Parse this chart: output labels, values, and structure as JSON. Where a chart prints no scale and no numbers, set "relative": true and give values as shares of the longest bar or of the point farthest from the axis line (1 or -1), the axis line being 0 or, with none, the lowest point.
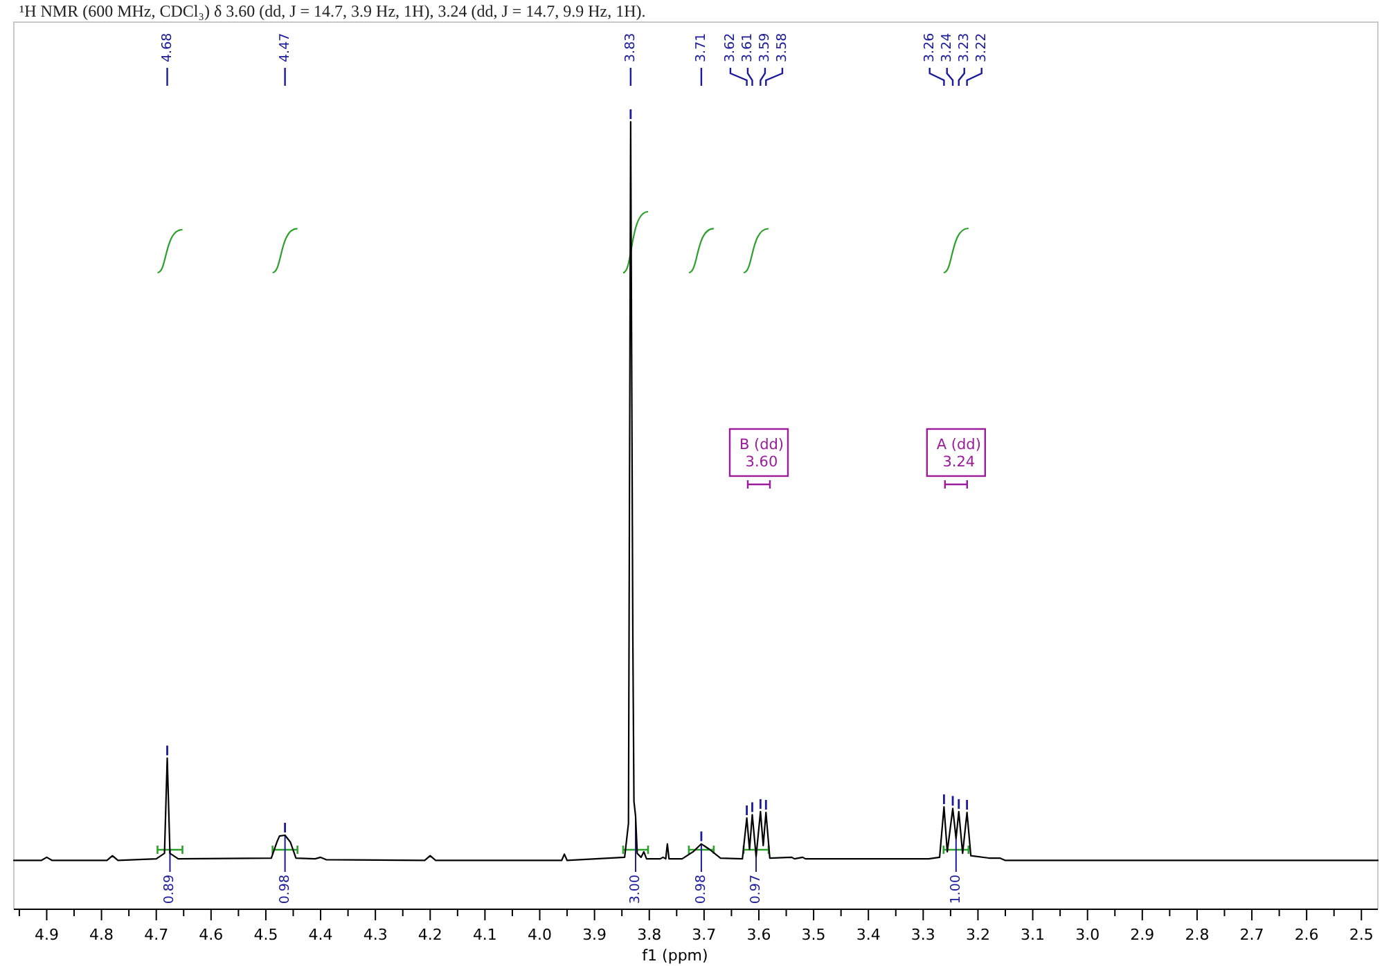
{
  "chart_data": {
    "type": "line",
    "relative": true,
    "title": "¹H NMR (600 MHz, CDCl₃) δ 3.60 (dd, J = 14.7, 3.9 Hz, 1H), 3.24 (dd, J = 14.7, 9.9 Hz, 1H).",
    "xlabel": "f1 (ppm)",
    "xlim": [
      4.96,
      2.47
    ],
    "xticks": [
      4.9,
      4.8,
      4.7,
      4.6,
      4.5,
      4.4,
      4.3,
      4.2,
      4.1,
      {
        "value": 4,
        "label": "4.0"
      },
      3.9,
      3.8,
      3.7,
      3.6,
      3.5,
      3.4,
      3.3,
      3.2,
      3.1,
      {
        "value": 3,
        "label": "3.0"
      },
      2.9,
      2.8,
      2.7,
      2.6,
      2.5
    ],
    "series": [
      {
        "color": "#000000",
        "x": [
          4.96,
          4.91,
          4.9,
          4.89,
          4.79,
          4.78,
          4.77,
          4.7,
          4.685,
          4.68,
          4.675,
          4.66,
          4.49,
          4.48,
          4.475,
          4.465,
          4.455,
          4.445,
          4.41,
          4.4,
          4.39,
          4.21,
          4.2,
          4.19,
          3.96,
          3.955,
          3.95,
          3.845,
          3.838,
          3.834,
          3.83,
          3.828,
          3.825,
          3.822,
          3.815,
          3.81,
          3.805,
          3.78,
          3.775,
          3.77,
          3.767,
          3.764,
          3.74,
          3.72,
          3.705,
          3.69,
          3.67,
          3.63,
          3.622,
          3.617,
          3.612,
          3.605,
          3.597,
          3.592,
          3.587,
          3.58,
          3.54,
          3.535,
          3.52,
          3.515,
          3.48,
          3.29,
          3.27,
          3.262,
          3.256,
          3.246,
          3.24,
          3.235,
          3.228,
          3.22,
          3.213,
          3.18,
          3.16,
          3.15,
          2.47
        ],
        "values": [
          0.062,
          0.062,
          0.066,
          0.062,
          0.062,
          0.068,
          0.062,
          0.064,
          0.071,
          0.192,
          0.071,
          0.064,
          0.065,
          0.085,
          0.093,
          0.094,
          0.085,
          0.065,
          0.064,
          0.066,
          0.063,
          0.062,
          0.068,
          0.062,
          0.062,
          0.07,
          0.062,
          0.066,
          0.109,
          1.0,
          0.343,
          0.137,
          0.118,
          0.071,
          0.066,
          0.073,
          0.064,
          0.064,
          0.066,
          0.064,
          0.083,
          0.064,
          0.064,
          0.073,
          0.083,
          0.076,
          0.065,
          0.064,
          0.116,
          0.076,
          0.12,
          0.067,
          0.124,
          0.081,
          0.123,
          0.065,
          0.066,
          0.064,
          0.066,
          0.064,
          0.064,
          0.064,
          0.066,
          0.13,
          0.073,
          0.128,
          0.09,
          0.124,
          0.071,
          0.123,
          0.068,
          0.065,
          0.065,
          0.062,
          0.062
        ]
      }
    ],
    "annotations": [
      {
        "text": "4.68",
        "x": 4.68
      },
      {
        "text": "4.47",
        "x": 4.465
      },
      {
        "text": "3.83",
        "x": 3.834
      },
      {
        "text": "3.71",
        "x": 3.705
      },
      {
        "text": "3.62",
        "x": 3.622
      },
      {
        "text": "3.61",
        "x": 3.612
      },
      {
        "text": "3.59",
        "x": 3.597
      },
      {
        "text": "3.58",
        "x": 3.587
      },
      {
        "text": "3.26",
        "x": 3.262
      },
      {
        "text": "3.24",
        "x": 3.246
      },
      {
        "text": "3.23",
        "x": 3.235
      },
      {
        "text": "3.22",
        "x": 3.22
      },
      {
        "text": "B (dd)\n3.60",
        "x": 3.6,
        "y": 0.58
      },
      {
        "text": "A (dd)\n3.24",
        "x": 3.24,
        "y": 0.58
      },
      {
        "text": "0.89",
        "x": 4.675,
        "y": 0.071
      },
      {
        "text": "0.98",
        "x": 4.465,
        "y": 0.094
      },
      {
        "text": "3.00",
        "x": 3.825,
        "y": 0.118
      },
      {
        "text": "0.98",
        "x": 3.705,
        "y": 0.083
      },
      {
        "text": "0.97",
        "x": 3.605,
        "y": 0.067
      },
      {
        "text": "1.00",
        "x": 3.24,
        "y": 0.09
      }
    ]
  }
}
